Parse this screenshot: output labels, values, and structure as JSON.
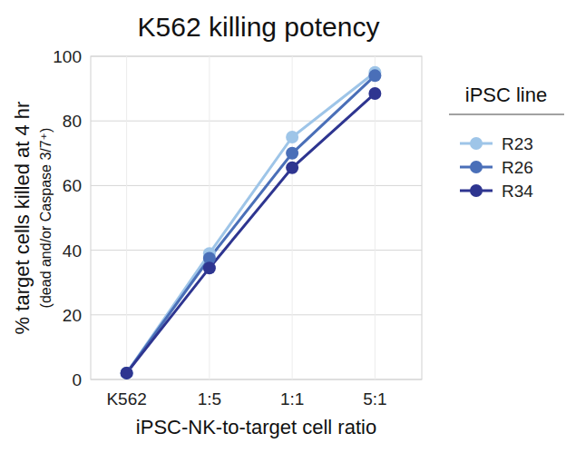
{
  "chart_data": {
    "type": "line",
    "title": "K562 killing potency",
    "y_label": "% target cells killed at 4 hr",
    "y_label_sub": "(dead and/or Caspase 3/7⁺)",
    "x_label": "iPSC-NK-to-target cell ratio",
    "legend_title": "iPSC line",
    "categories": [
      "K562",
      "1:5",
      "1:1",
      "5:1"
    ],
    "series": [
      {
        "name": "R23",
        "color": "#9ec5e8",
        "values": [
          2,
          39,
          75,
          95
        ]
      },
      {
        "name": "R26",
        "color": "#4a6fb8",
        "values": [
          2,
          37.5,
          70,
          94
        ]
      },
      {
        "name": "R34",
        "color": "#2e3590",
        "values": [
          2,
          34.5,
          65.5,
          88.5
        ]
      }
    ],
    "ylim": [
      0,
      100
    ],
    "yticks": [
      0,
      20,
      40,
      60,
      80,
      100
    ],
    "grid": true,
    "legend": "right",
    "marker": "circle"
  }
}
